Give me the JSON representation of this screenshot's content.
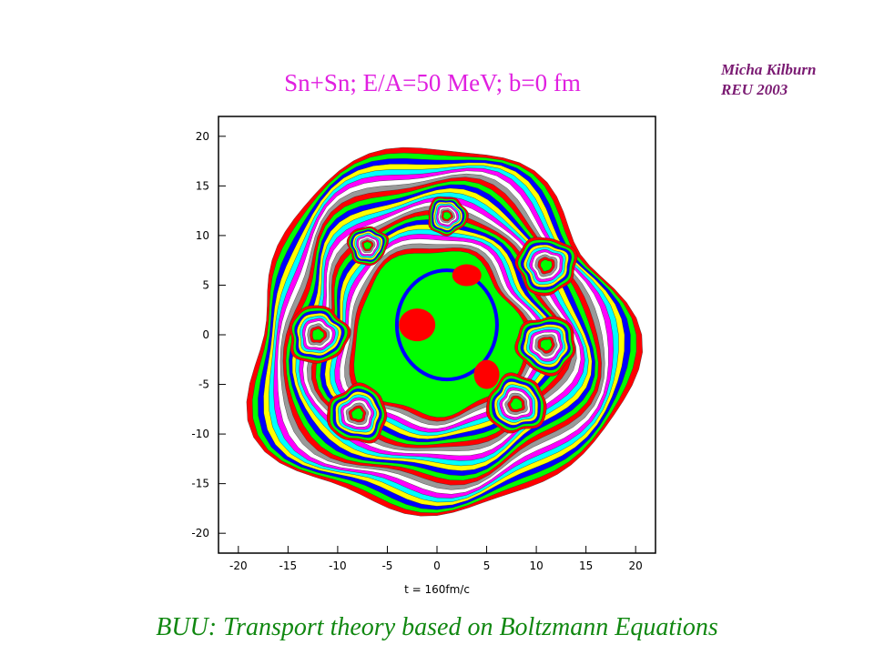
{
  "slide": {
    "title": "Sn+Sn; E/A=50 MeV; b=0 fm",
    "author_name": "Micha Kilburn",
    "author_program": "REU 2003",
    "caption": "BUU: Transport theory based on Boltzmann Equations"
  },
  "chart_data": {
    "type": "heatmap",
    "title": "",
    "xlabel": "t = 160fm/c",
    "ylabel": "",
    "xlim": [
      -22,
      22
    ],
    "ylim": [
      -22,
      22
    ],
    "x_ticks": [
      -20,
      -15,
      -10,
      -5,
      0,
      5,
      10,
      15,
      20
    ],
    "y_ticks": [
      20,
      15,
      10,
      5,
      0,
      -5,
      -10,
      -15,
      -20
    ],
    "grid": false,
    "legend": "none",
    "contour_colors": [
      "#ff0000",
      "#00ff00",
      "#0000ff",
      "#ffff00",
      "#00ffff",
      "#ff00ff",
      "#ffffff",
      "#999999"
    ],
    "description_source": "density contours of a nucleus-nucleus collision",
    "features": [
      {
        "x": 0,
        "y": 0,
        "r": 19
      },
      {
        "x": -12,
        "y": 0,
        "r": 3
      },
      {
        "x": 11,
        "y": 7,
        "r": 3
      },
      {
        "x": 11,
        "y": -1,
        "r": 3
      },
      {
        "x": -8,
        "y": -8,
        "r": 3
      },
      {
        "x": 8,
        "y": -7,
        "r": 3
      },
      {
        "x": 1,
        "y": 12,
        "r": 2
      },
      {
        "x": -7,
        "y": 9,
        "r": 2
      }
    ]
  }
}
